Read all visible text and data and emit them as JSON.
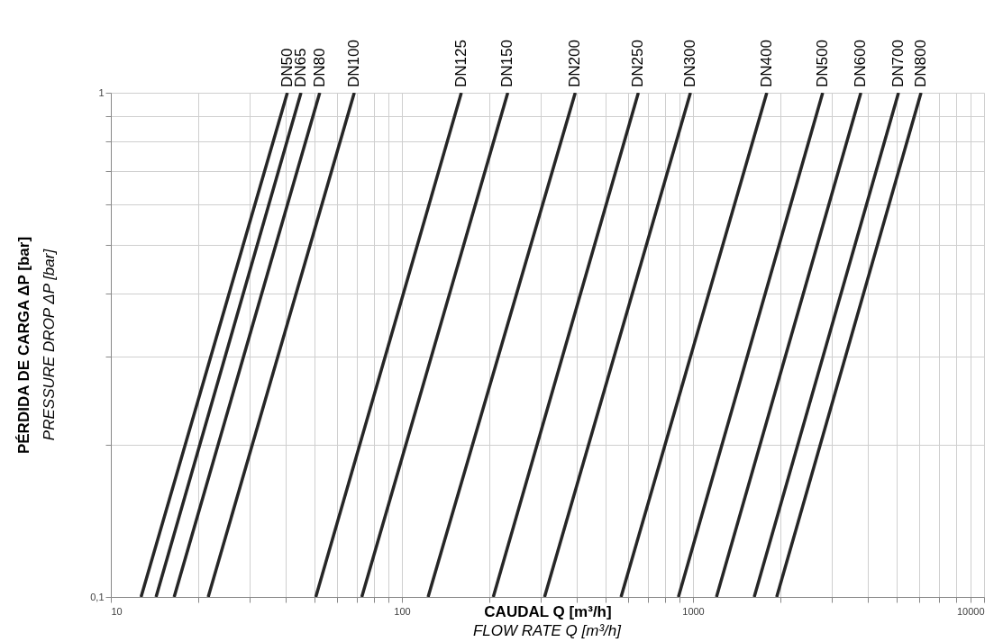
{
  "chart_data": {
    "type": "line",
    "xlabel": "CAUDAL Q [m³/h]",
    "ylabel": "PÉRDIDA DE CARGA ΔP [bar]",
    "annotations": [
      "PRESSURE DROP ΔP [bar]",
      "FLOW RATE Q [m³/h]"
    ],
    "log": "xy",
    "grid": true,
    "legend": false,
    "marker": "none",
    "line_style": "solid",
    "xlim": [
      10,
      10000
    ],
    "ylim": [
      0.1,
      1
    ],
    "xticks": [
      10,
      {
        "value": 20,
        "label": null
      },
      {
        "value": 30,
        "label": null
      },
      {
        "value": 40,
        "label": null
      },
      {
        "value": 50,
        "label": null
      },
      {
        "value": 60,
        "label": null
      },
      {
        "value": 70,
        "label": null
      },
      {
        "value": 80,
        "label": null
      },
      {
        "value": 90,
        "label": null
      },
      100,
      {
        "value": 200,
        "label": null
      },
      {
        "value": 300,
        "label": null
      },
      {
        "value": 400,
        "label": null
      },
      {
        "value": 500,
        "label": null
      },
      {
        "value": 600,
        "label": null
      },
      {
        "value": 700,
        "label": null
      },
      {
        "value": 800,
        "label": null
      },
      {
        "value": 900,
        "label": null
      },
      1000,
      {
        "value": 2000,
        "label": null
      },
      {
        "value": 3000,
        "label": null
      },
      {
        "value": 4000,
        "label": null
      },
      {
        "value": 5000,
        "label": null
      },
      {
        "value": 6000,
        "label": null
      },
      {
        "value": 7000,
        "label": null
      },
      {
        "value": 8000,
        "label": null
      },
      {
        "value": 9000,
        "label": null
      },
      10000
    ],
    "yticks": [
      {
        "value": 0.1,
        "label": "0,1"
      },
      {
        "value": 0.2,
        "label": null
      },
      {
        "value": 0.3,
        "label": null
      },
      {
        "value": 0.4,
        "label": null
      },
      {
        "value": 0.5,
        "label": null
      },
      {
        "value": 0.6,
        "label": null
      },
      {
        "value": 0.7,
        "label": null
      },
      {
        "value": 0.8,
        "label": null
      },
      {
        "value": 0.9,
        "label": null
      },
      1
    ],
    "series": [
      {
        "name": "DN50",
        "color": "#262626",
        "x": [
          12.7,
          40.4
        ],
        "values": [
          0.1,
          1
        ]
      },
      {
        "name": "DN65",
        "color": "#262626",
        "x": [
          14.3,
          45
        ],
        "values": [
          0.1,
          1
        ]
      },
      {
        "name": "DN80",
        "color": "#262626",
        "x": [
          16.5,
          52.2
        ],
        "values": [
          0.1,
          1
        ]
      },
      {
        "name": "DN100",
        "color": "#262626",
        "x": [
          21.6,
          68.6
        ],
        "values": [
          0.1,
          1
        ]
      },
      {
        "name": "DN125",
        "color": "#262626",
        "x": [
          50.6,
          160
        ],
        "values": [
          0.1,
          1
        ]
      },
      {
        "name": "DN150",
        "color": "#262626",
        "x": [
          72.8,
          231
        ],
        "values": [
          0.1,
          1
        ]
      },
      {
        "name": "DN200",
        "color": "#262626",
        "x": [
          123,
          394
        ],
        "values": [
          0.1,
          1
        ]
      },
      {
        "name": "DN250",
        "color": "#262626",
        "x": [
          206,
          649
        ],
        "values": [
          0.1,
          1
        ]
      },
      {
        "name": "DN300",
        "color": "#262626",
        "x": [
          309,
          980
        ],
        "values": [
          0.1,
          1
        ]
      },
      {
        "name": "DN400",
        "color": "#262626",
        "x": [
          566,
          1793
        ],
        "values": [
          0.1,
          1
        ]
      },
      {
        "name": "DN500",
        "color": "#262626",
        "x": [
          891,
          2790
        ],
        "values": [
          0.1,
          1
        ]
      },
      {
        "name": "DN600",
        "color": "#262626",
        "x": [
          1204,
          3773
        ],
        "values": [
          0.1,
          1
        ]
      },
      {
        "name": "DN700",
        "color": "#262626",
        "x": [
          1623,
          5082
        ],
        "values": [
          0.1,
          1
        ]
      },
      {
        "name": "DN800",
        "color": "#262626",
        "x": [
          1939,
          6073
        ],
        "values": [
          0.1,
          1
        ]
      }
    ]
  }
}
